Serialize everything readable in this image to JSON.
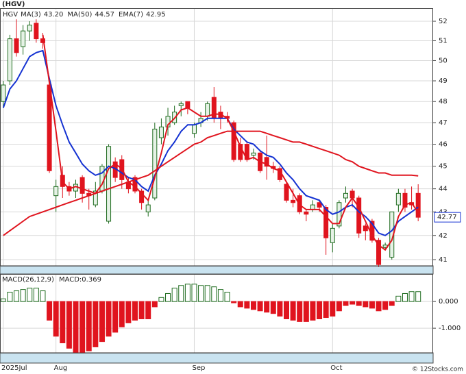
{
  "chart_data": [
    {
      "type": "candlestick",
      "title": "(HGV)",
      "log_scale": true,
      "grid": true,
      "categories": [
        "2025Jul",
        null,
        null,
        null,
        null,
        null,
        null,
        null,
        "Aug",
        null,
        null,
        null,
        null,
        null,
        null,
        null,
        null,
        null,
        null,
        null,
        null,
        null,
        null,
        null,
        null,
        null,
        null,
        null,
        null,
        "Sep",
        null,
        null,
        null,
        null,
        null,
        null,
        null,
        null,
        null,
        null,
        null,
        null,
        null,
        null,
        null,
        null,
        null,
        null,
        null,
        null,
        "Oct",
        null,
        null,
        null,
        null,
        null,
        null,
        null,
        null,
        null,
        null,
        null,
        null,
        null
      ],
      "ylim": [
        40.75,
        52.68
      ],
      "yticks": [
        41,
        42,
        43,
        44,
        45,
        46,
        47,
        48,
        49,
        50,
        51,
        52
      ],
      "series": [
        {
          "name": "HGV",
          "type": "candle",
          "color": "#1e6b1e",
          "up_fill": "#e6f2e6",
          "down_color": "#e0141e",
          "open": [
            48.0,
            49.0,
            51.1,
            50.7,
            51.5,
            51.9,
            51.1,
            48.8,
            43.7,
            44.6,
            44.1,
            43.9,
            44.5,
            43.8,
            43.3,
            43.9,
            42.6,
            45.2,
            45.3,
            44.3,
            44.5,
            43.9,
            43.0,
            43.6,
            46.3,
            46.8,
            47.0,
            47.8,
            48.0,
            46.5,
            47.0,
            47.3,
            48.2,
            47.5,
            47.3,
            47.0,
            46.0,
            46.0,
            45.5,
            45.6,
            45.4,
            45.0,
            44.9,
            44.2,
            43.5,
            43.7,
            43.0,
            43.1,
            43.4,
            43.2,
            41.7,
            42.4,
            43.6,
            43.9,
            43.6,
            42.4,
            42.6,
            41.8,
            41.5,
            41.1,
            43.3,
            43.8,
            43.4,
            43.8
          ],
          "high": [
            49.0,
            51.3,
            52.1,
            51.8,
            52.0,
            52.1,
            51.4,
            48.9,
            44.4,
            45.0,
            44.3,
            44.4,
            44.6,
            44.0,
            44.3,
            45.1,
            46.0,
            45.4,
            45.5,
            44.5,
            44.6,
            44.0,
            43.5,
            47.0,
            47.2,
            47.7,
            47.8,
            48.0,
            48.0,
            47.0,
            47.5,
            48.0,
            48.7,
            47.8,
            47.5,
            47.1,
            46.3,
            46.1,
            45.8,
            45.7,
            46.4,
            45.2,
            45.0,
            44.3,
            44.0,
            43.8,
            43.1,
            43.5,
            43.5,
            43.3,
            42.5,
            43.5,
            44.1,
            44.0,
            43.7,
            42.5,
            42.7,
            41.9,
            41.7,
            43.0,
            44.0,
            44.0,
            44.1,
            44.2
          ],
          "low": [
            47.7,
            48.8,
            50.2,
            50.3,
            51.0,
            50.9,
            50.6,
            44.7,
            43.0,
            43.6,
            43.7,
            43.6,
            43.4,
            43.1,
            43.2,
            43.8,
            42.5,
            44.3,
            44.0,
            43.8,
            43.8,
            43.1,
            42.8,
            43.5,
            46.0,
            46.4,
            46.9,
            47.3,
            47.4,
            46.3,
            46.8,
            47.1,
            47.0,
            46.7,
            47.0,
            45.2,
            45.2,
            45.2,
            45.3,
            44.7,
            44.4,
            44.7,
            44.3,
            43.4,
            43.2,
            42.9,
            42.6,
            43.0,
            43.0,
            41.2,
            41.3,
            42.3,
            43.4,
            43.2,
            41.9,
            41.8,
            41.7,
            40.7,
            41.4,
            41.0,
            43.0,
            43.0,
            43.1,
            42.6
          ],
          "close": [
            48.8,
            51.1,
            50.4,
            51.5,
            51.8,
            51.1,
            50.9,
            44.8,
            44.1,
            44.1,
            43.9,
            44.2,
            43.8,
            43.7,
            43.9,
            45.0,
            45.9,
            44.5,
            44.4,
            44.0,
            43.9,
            43.4,
            43.3,
            46.7,
            46.8,
            47.3,
            47.5,
            47.9,
            47.7,
            46.9,
            47.2,
            47.9,
            47.2,
            47.2,
            47.2,
            45.3,
            45.3,
            45.3,
            45.6,
            44.8,
            45.0,
            44.9,
            44.4,
            43.5,
            43.4,
            43.0,
            42.9,
            43.3,
            43.2,
            41.9,
            42.3,
            43.4,
            43.8,
            43.6,
            42.1,
            42.2,
            41.8,
            40.8,
            41.6,
            43.0,
            43.8,
            43.2,
            43.3,
            42.77
          ]
        },
        {
          "name": "MA(3)",
          "type": "line",
          "color": "#1432d2",
          "last_label": "43.20",
          "values": [
            47.7,
            48.6,
            49.0,
            49.6,
            50.2,
            50.4,
            50.5,
            49.1,
            47.8,
            46.9,
            46.1,
            45.6,
            45.1,
            44.8,
            44.6,
            44.7,
            45.0,
            44.9,
            44.7,
            44.5,
            44.4,
            44.1,
            43.9,
            44.6,
            45.1,
            45.7,
            46.1,
            46.6,
            46.9,
            46.9,
            47.0,
            47.2,
            47.2,
            47.2,
            47.2,
            46.7,
            46.4,
            46.1,
            46.0,
            45.7,
            45.5,
            45.4,
            45.1,
            44.7,
            44.4,
            44.0,
            43.7,
            43.6,
            43.5,
            43.1,
            42.9,
            43.0,
            43.2,
            43.3,
            43.0,
            42.8,
            42.5,
            42.1,
            42.0,
            42.2,
            42.6,
            42.8,
            43.0,
            43.2
          ]
        },
        {
          "name": "MA(50)",
          "type": "line",
          "color": "#e0141e",
          "last_label": "44.57",
          "values": [
            42.0,
            42.2,
            42.4,
            42.6,
            42.8,
            42.9,
            43.0,
            43.1,
            43.2,
            43.3,
            43.4,
            43.5,
            43.6,
            43.7,
            43.8,
            43.9,
            44.0,
            44.1,
            44.2,
            44.3,
            44.4,
            44.5,
            44.6,
            44.8,
            45.0,
            45.2,
            45.4,
            45.6,
            45.8,
            46.0,
            46.1,
            46.3,
            46.4,
            46.5,
            46.6,
            46.6,
            46.6,
            46.6,
            46.6,
            46.6,
            46.5,
            46.4,
            46.3,
            46.2,
            46.1,
            46.1,
            46.0,
            45.9,
            45.8,
            45.7,
            45.6,
            45.5,
            45.3,
            45.2,
            45.0,
            44.9,
            44.8,
            44.7,
            44.7,
            44.6,
            44.6,
            44.6,
            44.6,
            44.57
          ]
        },
        {
          "name": "EMA(7)",
          "type": "line",
          "color": "#e0141e",
          "last_label": "42.95",
          "values": [
            null,
            null,
            null,
            null,
            null,
            null,
            51.3,
            48.9,
            46.6,
            44.3,
            44.0,
            44.1,
            44.0,
            43.9,
            43.8,
            44.2,
            44.9,
            45.1,
            44.9,
            44.3,
            44.1,
            43.8,
            43.5,
            44.5,
            45.6,
            46.9,
            47.2,
            47.6,
            47.7,
            47.5,
            47.3,
            47.3,
            47.4,
            47.4,
            47.2,
            46.6,
            45.9,
            45.3,
            45.4,
            45.2,
            45.1,
            44.9,
            44.8,
            44.3,
            43.8,
            43.3,
            43.1,
            43.1,
            43.1,
            42.8,
            42.5,
            42.5,
            43.2,
            43.6,
            43.2,
            42.6,
            42.0,
            41.6,
            41.4,
            41.8,
            42.8,
            43.3,
            43.4,
            42.95
          ]
        }
      ]
    },
    {
      "type": "bar",
      "title": "MACD(26,12,9)",
      "subtitle": "MACD:0.369",
      "grid": true,
      "ylim": [
        -1.92,
        1.03
      ],
      "yticks": [
        {
          "value": 0,
          "label": "0.000"
        },
        {
          "value": -1,
          "label": "-1.000"
        }
      ],
      "pos_color": "#1e6b1e",
      "neg_color": "#e0141e",
      "values": [
        0.1,
        0.35,
        0.4,
        0.45,
        0.5,
        0.5,
        0.4,
        -0.7,
        -1.3,
        -1.55,
        -1.75,
        -1.9,
        -1.9,
        -1.85,
        -1.7,
        -1.5,
        -1.3,
        -1.15,
        -0.95,
        -0.8,
        -0.7,
        -0.65,
        -0.65,
        -0.2,
        0.15,
        0.3,
        0.5,
        0.6,
        0.65,
        0.65,
        0.6,
        0.6,
        0.55,
        0.45,
        0.35,
        -0.05,
        -0.2,
        -0.25,
        -0.3,
        -0.35,
        -0.4,
        -0.45,
        -0.55,
        -0.65,
        -0.7,
        -0.75,
        -0.75,
        -0.7,
        -0.65,
        -0.6,
        -0.55,
        -0.35,
        -0.15,
        -0.1,
        -0.15,
        -0.2,
        -0.25,
        -0.35,
        -0.3,
        -0.15,
        0.2,
        0.3,
        0.37,
        0.369
      ]
    }
  ],
  "footer": "© 12Stocks.com"
}
